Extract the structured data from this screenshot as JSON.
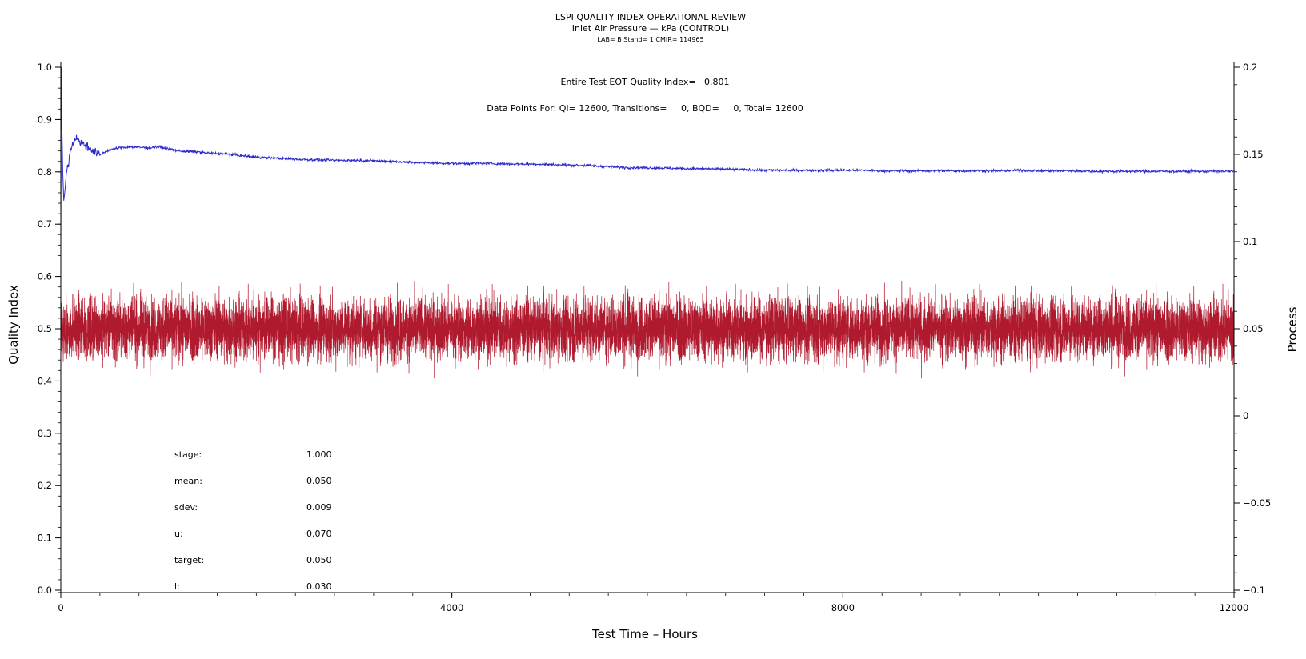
{
  "chart_data": {
    "type": "line",
    "title": "LSPI QUALITY INDEX OPERATIONAL REVIEW",
    "subtitle": "Inlet Air Pressure — kPa (CONTROL)",
    "subtitle2": "LAB= B Stand= 1 CMIR= 114965",
    "xlabel": "Test Time – Hours",
    "ylabel": "Quality Index",
    "y2label": "Process",
    "xlim": [
      0,
      12000
    ],
    "ylim": [
      0,
      1
    ],
    "y2lim": [
      -0.1,
      0.2
    ],
    "x_ticks": [
      "0",
      "4000",
      "8000",
      "12000"
    ],
    "x_tick_values": [
      0,
      4000,
      8000,
      12000
    ],
    "y_ticks": [
      "0.0",
      "0.1",
      "0.2",
      "0.3",
      "0.4",
      "0.5",
      "0.6",
      "0.7",
      "0.8",
      "0.9",
      "1.0"
    ],
    "y_tick_values": [
      0,
      0.1,
      0.2,
      0.3,
      0.4,
      0.5,
      0.6,
      0.7,
      0.8,
      0.9,
      1.0
    ],
    "y2_ticks": [
      "−0.1",
      "−0.05",
      "0",
      "0.05",
      "0.1",
      "0.15",
      "0.2"
    ],
    "y2_tick_values": [
      -0.1,
      -0.05,
      0,
      0.05,
      0.1,
      0.15,
      0.2
    ],
    "grid": false,
    "annotations": [
      "Entire Test EOT Quality Index=   0.801",
      "Data Points For: QI= 12600, Transitions=     0, BQD=     0, Total= 12600"
    ],
    "stats": [
      {
        "label": "stage:",
        "value": "1.000"
      },
      {
        "label": "mean:",
        "value": "0.050"
      },
      {
        "label": "sdev:",
        "value": "0.009"
      },
      {
        "label": "u:",
        "value": "0.070"
      },
      {
        "label": "target:",
        "value": "0.050"
      },
      {
        "label": "l:",
        "value": "0.030"
      }
    ],
    "series": [
      {
        "axis": "left",
        "color": "#2b2bcc",
        "x": [
          0,
          5,
          10,
          20,
          30,
          40,
          50,
          60,
          80,
          100,
          120,
          140,
          160,
          180,
          200,
          250,
          300,
          350,
          400,
          450,
          500,
          600,
          700,
          800,
          900,
          1000,
          1100,
          1200,
          1300,
          1400,
          1500,
          1600,
          1700,
          1800,
          1900,
          2000,
          2200,
          2400,
          2600,
          2800,
          3000,
          3200,
          3400,
          3600,
          3800,
          4000,
          4200,
          4400,
          4600,
          4800,
          5000,
          5200,
          5400,
          5600,
          5800,
          6000,
          6200,
          6400,
          6600,
          6800,
          7000,
          7200,
          7400,
          7600,
          7800,
          8000,
          8200,
          8400,
          8600,
          8800,
          9000,
          9200,
          9400,
          9600,
          9800,
          10000,
          10200,
          10400,
          10600,
          10800,
          11000,
          11200,
          11400,
          11600,
          11800,
          12000
        ],
        "values": [
          0.655,
          1.0,
          0.9,
          0.8,
          0.745,
          0.76,
          0.78,
          0.8,
          0.82,
          0.84,
          0.855,
          0.86,
          0.868,
          0.86,
          0.856,
          0.85,
          0.845,
          0.838,
          0.832,
          0.838,
          0.842,
          0.846,
          0.848,
          0.847,
          0.846,
          0.848,
          0.844,
          0.84,
          0.839,
          0.838,
          0.836,
          0.835,
          0.834,
          0.832,
          0.83,
          0.828,
          0.826,
          0.824,
          0.823,
          0.822,
          0.822,
          0.821,
          0.82,
          0.818,
          0.817,
          0.816,
          0.816,
          0.816,
          0.815,
          0.815,
          0.814,
          0.813,
          0.812,
          0.81,
          0.808,
          0.808,
          0.807,
          0.806,
          0.806,
          0.805,
          0.804,
          0.803,
          0.803,
          0.803,
          0.803,
          0.803,
          0.803,
          0.802,
          0.802,
          0.802,
          0.802,
          0.802,
          0.802,
          0.802,
          0.803,
          0.802,
          0.802,
          0.802,
          0.801,
          0.801,
          0.801,
          0.801,
          0.801,
          0.801,
          0.801,
          0.801
        ]
      },
      {
        "axis": "right",
        "color": "#b01a2e",
        "x": [
          0,
          12000
        ],
        "mean": 0.05,
        "sdev": 0.009,
        "points": 12600,
        "range": [
          0.021,
          0.078
        ]
      }
    ]
  }
}
